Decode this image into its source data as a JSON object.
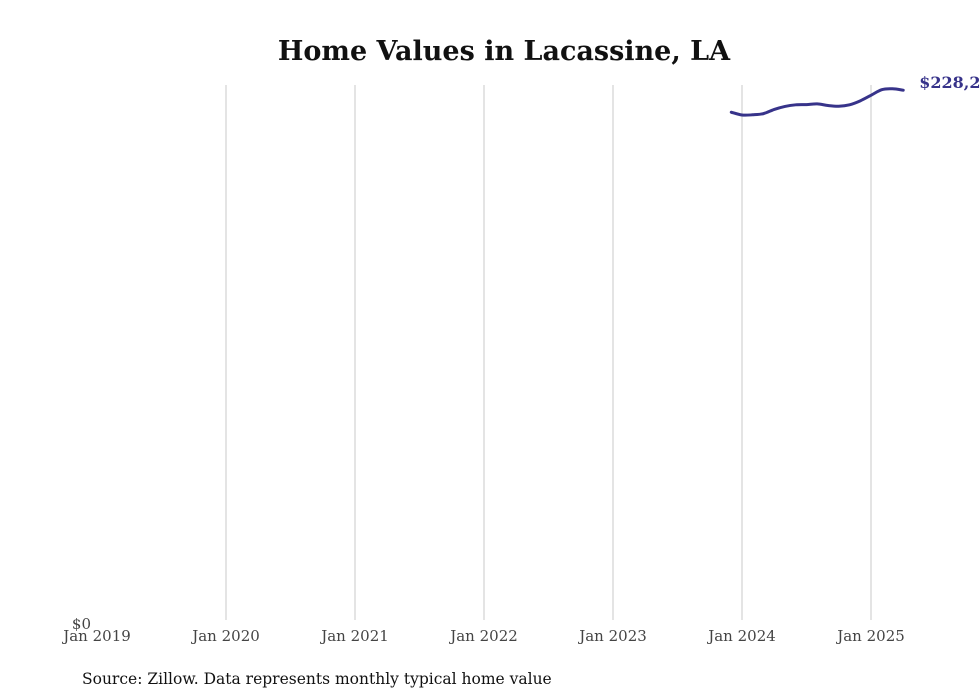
{
  "chart_data": {
    "type": "line",
    "title": "Home Values in Lacassine, LA",
    "source": "Source: Zillow. Data represents monthly typical home value",
    "xlabel": "",
    "ylabel": "",
    "y_tick_labels": [
      "$0"
    ],
    "ylim": [
      0,
      230000
    ],
    "x_tick_labels": [
      "Jan 2019",
      "Jan 2020",
      "Jan 2021",
      "Jan 2022",
      "Jan 2023",
      "Jan 2024",
      "Jan 2025"
    ],
    "x_tick_dates": [
      "2019-01",
      "2020-01",
      "2021-01",
      "2022-01",
      "2023-01",
      "2024-01",
      "2025-01"
    ],
    "grid": "vertical",
    "series": [
      {
        "color": "#37338a",
        "end_label": "$228,2",
        "x": [
          "2023-12",
          "2024-01",
          "2024-02",
          "2024-03",
          "2024-04",
          "2024-05",
          "2024-06",
          "2024-07",
          "2024-08",
          "2024-09",
          "2024-10",
          "2024-11",
          "2024-12",
          "2025-01",
          "2025-02",
          "2025-03",
          "2025-04"
        ],
        "values": [
          218700,
          217500,
          217600,
          218100,
          219900,
          221200,
          221900,
          222000,
          222300,
          221600,
          221300,
          221900,
          223600,
          226000,
          228400,
          228800,
          228200
        ]
      }
    ]
  }
}
